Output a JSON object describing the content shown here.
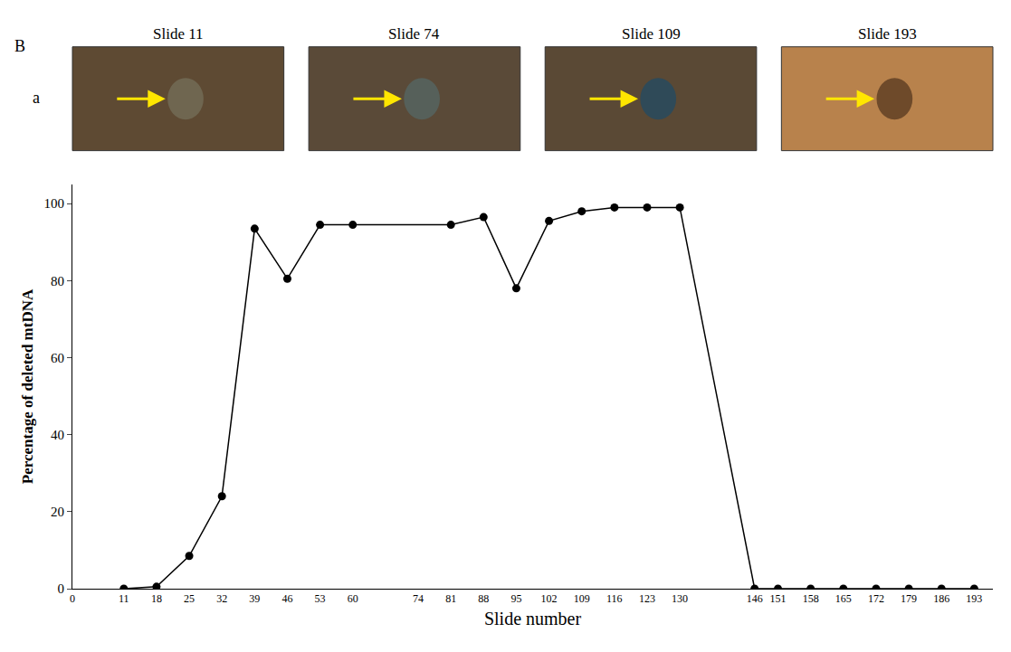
{
  "panel_label": "B",
  "row_label": "a",
  "image_titles": [
    "Slide 11",
    "Slide 74",
    "Slide 109",
    "Slide 193"
  ],
  "chart_data": {
    "type": "line",
    "x": [
      11,
      18,
      25,
      32,
      39,
      46,
      53,
      60,
      81,
      88,
      95,
      102,
      109,
      116,
      123,
      130,
      146,
      151,
      158,
      165,
      172,
      179,
      186,
      193
    ],
    "values": [
      0,
      0.5,
      8.5,
      24,
      93.5,
      80.5,
      94.5,
      94.5,
      94.5,
      96.5,
      78,
      95.5,
      98,
      99,
      99,
      99,
      0,
      0,
      0,
      0,
      0,
      0,
      0,
      0
    ],
    "color": "#000000",
    "marker": "circle",
    "line_style": "solid",
    "xlabel": "Slide number",
    "ylabel": "Percentage of deleted mtDNA",
    "xlim": [
      0,
      197
    ],
    "xticks": [
      0,
      11,
      18,
      25,
      32,
      39,
      46,
      53,
      60,
      74,
      81,
      88,
      95,
      102,
      109,
      116,
      123,
      130,
      146,
      151,
      158,
      165,
      172,
      179,
      186,
      193
    ],
    "ylim": [
      0,
      105
    ],
    "yticks": [
      0,
      20,
      40,
      60,
      80,
      100
    ],
    "grid": false
  }
}
